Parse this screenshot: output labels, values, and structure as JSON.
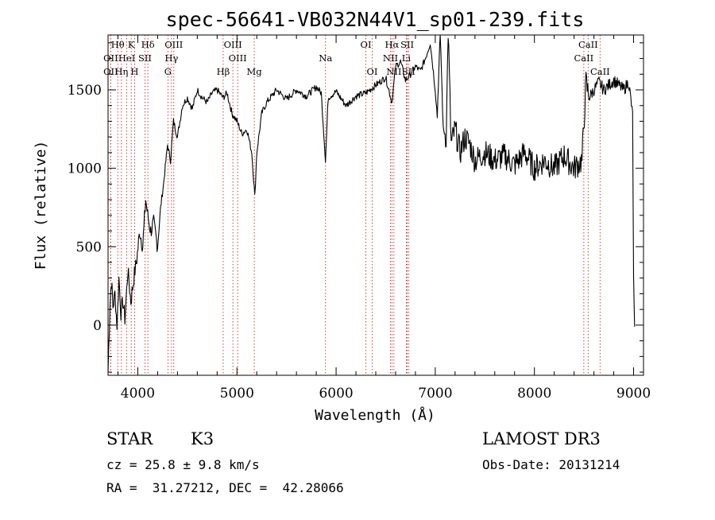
{
  "footer": {
    "class_label": "STAR",
    "subclass_label": "K3",
    "cz_text": "cz = 25.8 ± 9.8 km/s",
    "coords_text": "RA =  31.27212, DEC =  42.28066",
    "survey_text": "LAMOST DR3",
    "obs_date_text": "Obs-Date: 20131214"
  },
  "chart_data": {
    "type": "line",
    "title": "spec-56641-VB032N44V1_sp01-239.fits",
    "xlabel": "Wavelength (Å)",
    "ylabel": "Flux (relative)",
    "xlim": [
      3700,
      9100
    ],
    "ylim": [
      -320,
      1850
    ],
    "xticks": [
      4000,
      5000,
      6000,
      7000,
      8000,
      9000
    ],
    "yticks": [
      0,
      500,
      1000,
      1500
    ],
    "grid": false,
    "line_color": "#000000",
    "marker_color": "#cc2a2a",
    "spectral_lines": [
      {
        "label": "Hθ",
        "x": 3798,
        "row": 0
      },
      {
        "label": "OII",
        "x": 3727,
        "row": 1
      },
      {
        "label": "OII",
        "x": 3727,
        "row": 2
      },
      {
        "label": "K",
        "x": 3934,
        "row": 0
      },
      {
        "label": "Hη",
        "x": 3835,
        "row": 2
      },
      {
        "label": "HeI",
        "x": 3889,
        "row": 1
      },
      {
        "label": "Hδ",
        "x": 4102,
        "row": 0
      },
      {
        "label": "SII",
        "x": 4072,
        "row": 1
      },
      {
        "label": "H",
        "x": 3968,
        "row": 2
      },
      {
        "label": "OIII",
        "x": 4363,
        "row": 0
      },
      {
        "label": "Hγ",
        "x": 4340,
        "row": 1
      },
      {
        "label": "G",
        "x": 4304,
        "row": 2
      },
      {
        "label": "Hβ",
        "x": 4861,
        "row": 2
      },
      {
        "label": "OIII",
        "x": 4959,
        "row": 0
      },
      {
        "label": "OIII",
        "x": 5007,
        "row": 1
      },
      {
        "label": "Mg",
        "x": 5175,
        "row": 2
      },
      {
        "label": "Na",
        "x": 5893,
        "row": 1
      },
      {
        "label": "OI",
        "x": 6300,
        "row": 0
      },
      {
        "label": "OI",
        "x": 6364,
        "row": 2
      },
      {
        "label": "Hα",
        "x": 6563,
        "row": 0
      },
      {
        "label": "NII",
        "x": 6548,
        "row": 1
      },
      {
        "label": "NII",
        "x": 6583,
        "row": 2
      },
      {
        "label": "SII",
        "x": 6717,
        "row": 0
      },
      {
        "label": "Li",
        "x": 6708,
        "row": 1
      },
      {
        "label": "SII",
        "x": 6731,
        "row": 2
      },
      {
        "label": "CaII",
        "x": 8542,
        "row": 0
      },
      {
        "label": "CaII",
        "x": 8498,
        "row": 1
      },
      {
        "label": "CaII",
        "x": 8662,
        "row": 2
      }
    ],
    "spectrum": {
      "x": [
        3700,
        3720,
        3735,
        3750,
        3770,
        3790,
        3810,
        3830,
        3850,
        3870,
        3900,
        3930,
        3960,
        3990,
        4020,
        4050,
        4080,
        4100,
        4130,
        4160,
        4200,
        4230,
        4260,
        4300,
        4330,
        4360,
        4400,
        4450,
        4500,
        4550,
        4600,
        4650,
        4700,
        4750,
        4800,
        4860,
        4900,
        4950,
        5000,
        5050,
        5100,
        5150,
        5180,
        5200,
        5250,
        5300,
        5400,
        5500,
        5600,
        5700,
        5800,
        5850,
        5893,
        5920,
        6000,
        6100,
        6200,
        6300,
        6400,
        6500,
        6563,
        6600,
        6650,
        6700,
        6750,
        6800,
        6850,
        6900,
        6950,
        7000,
        7020,
        7050,
        7080,
        7110,
        7130,
        7160,
        7200,
        7250,
        7300,
        7350,
        7400,
        7500,
        7600,
        7700,
        7800,
        7900,
        8000,
        8100,
        8200,
        8300,
        8400,
        8480,
        8520,
        8550,
        8600,
        8650,
        8700,
        8800,
        8900,
        8950,
        8990,
        9000,
        9010
      ],
      "y": [
        -300,
        150,
        280,
        120,
        200,
        0,
        300,
        80,
        150,
        40,
        350,
        150,
        300,
        420,
        600,
        500,
        800,
        700,
        600,
        650,
        500,
        750,
        900,
        1150,
        1050,
        1300,
        1200,
        1400,
        1450,
        1380,
        1500,
        1450,
        1420,
        1480,
        1500,
        1450,
        1480,
        1350,
        1300,
        1220,
        1250,
        1100,
        820,
        1100,
        1350,
        1420,
        1500,
        1440,
        1500,
        1460,
        1520,
        1480,
        1050,
        1450,
        1490,
        1400,
        1460,
        1480,
        1530,
        1580,
        1420,
        1650,
        1680,
        1560,
        1600,
        1650,
        1620,
        1700,
        1800,
        1500,
        1330,
        1880,
        1250,
        1200,
        1880,
        1150,
        1250,
        1100,
        1200,
        1150,
        1050,
        1100,
        1050,
        1080,
        1020,
        1100,
        1000,
        1050,
        1000,
        1080,
        1000,
        1050,
        1550,
        1450,
        1500,
        1550,
        1500,
        1560,
        1500,
        1550,
        1350,
        300,
        -10
      ]
    }
  }
}
